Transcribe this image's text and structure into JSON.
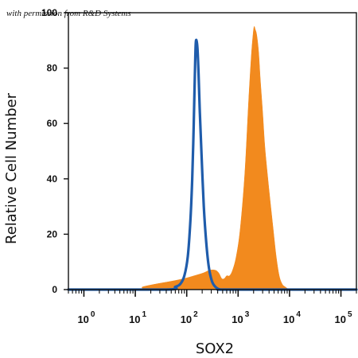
{
  "figure": {
    "permission_note": "with permission from R&D Systems"
  },
  "colors": {
    "filled_series": "#f28a1e",
    "outline_series": "#1f5cab",
    "axis": "#111111"
  },
  "chart_data": {
    "type": "area",
    "title": "",
    "xlabel": "SOX2",
    "ylabel": "Relative Cell Number",
    "x_scale": "log",
    "xlim": [
      0.5,
      200000
    ],
    "ylim": [
      0,
      100
    ],
    "grid": false,
    "legend": "none",
    "x_ticks": [
      {
        "value": 1,
        "base": "10",
        "power": "0"
      },
      {
        "value": 10,
        "base": "10",
        "power": "1"
      },
      {
        "value": 100,
        "base": "10",
        "power": "2"
      },
      {
        "value": 1000,
        "base": "10",
        "power": "3"
      },
      {
        "value": 10000,
        "base": "10",
        "power": "4"
      },
      {
        "value": 100000,
        "base": "10",
        "power": "5"
      }
    ],
    "y_ticks": [
      {
        "value": 0,
        "label": "0"
      },
      {
        "value": 20,
        "label": "20"
      },
      {
        "value": 40,
        "label": "40"
      },
      {
        "value": 60,
        "label": "60"
      },
      {
        "value": 80,
        "label": "80"
      },
      {
        "value": 100,
        "label": "100"
      }
    ],
    "series": [
      {
        "style": "filled",
        "color": "#f28a1e",
        "x": [
          0.5,
          10,
          14,
          25,
          50,
          90,
          140,
          210,
          280,
          360,
          420,
          480,
          540,
          600,
          680,
          780,
          920,
          1100,
          1350,
          1600,
          1800,
          1950,
          2050,
          2150,
          2300,
          2500,
          2700,
          3000,
          3300,
          3700,
          4200,
          4800,
          5500,
          6300,
          7200,
          8200,
          10000,
          12000,
          200000
        ],
        "y": [
          0,
          0,
          1,
          2,
          3,
          4,
          5,
          6,
          7,
          7,
          6,
          4,
          4,
          5,
          5,
          7,
          12,
          22,
          42,
          68,
          84,
          92,
          95,
          94,
          92,
          86,
          76,
          64,
          52,
          42,
          32,
          22,
          12,
          5,
          2,
          1,
          0,
          0,
          0
        ]
      },
      {
        "style": "outline",
        "color": "#1f5cab",
        "x": [
          0.5,
          40,
          60,
          75,
          90,
          105,
          118,
          128,
          135,
          141,
          146,
          150,
          155,
          162,
          170,
          180,
          195,
          215,
          240,
          270,
          310,
          360,
          450,
          700,
          200000
        ],
        "y": [
          0,
          0,
          1,
          2,
          5,
          12,
          25,
          40,
          55,
          70,
          82,
          89,
          90,
          87,
          78,
          64,
          48,
          30,
          17,
          8,
          3,
          1,
          0,
          0,
          0
        ]
      }
    ]
  }
}
